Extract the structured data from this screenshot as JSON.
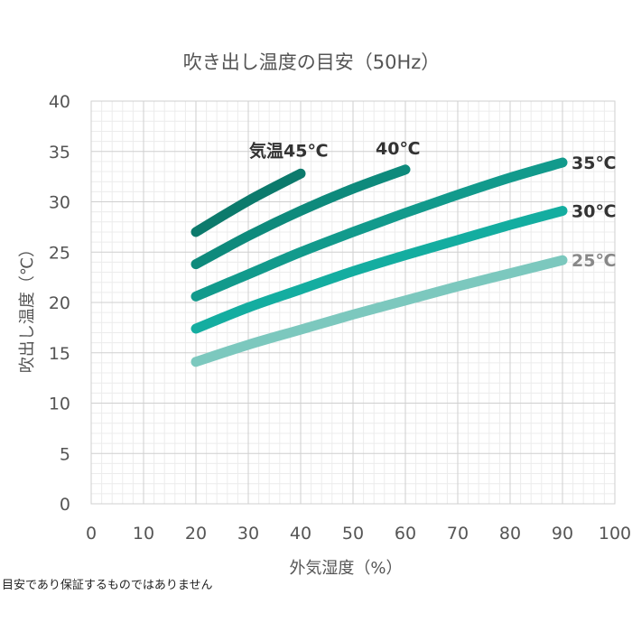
{
  "chart_data": {
    "type": "line",
    "title": "吹き出し温度の目安（50Hz）",
    "xlabel": "外気湿度（%）",
    "ylabel": "吹出し温度（℃）",
    "xlim": [
      0,
      100
    ],
    "ylim": [
      0,
      40
    ],
    "x_ticks": [
      "0",
      "10",
      "20",
      "30",
      "40",
      "50",
      "60",
      "70",
      "80",
      "90",
      "100"
    ],
    "y_ticks": [
      "0",
      "5",
      "10",
      "15",
      "20",
      "25",
      "30",
      "35",
      "40"
    ],
    "grid": true,
    "series": [
      {
        "name": "気温45℃",
        "color": "#0c7a6c",
        "x": [
          20,
          30,
          40
        ],
        "y": [
          27,
          30.1,
          32.8
        ]
      },
      {
        "name": "40℃",
        "color": "#0e8a7c",
        "x": [
          20,
          30,
          40,
          50,
          60
        ],
        "y": [
          23.8,
          26.6,
          29.1,
          31.3,
          33.2
        ]
      },
      {
        "name": "35℃",
        "color": "#129a8c",
        "x": [
          20,
          30,
          40,
          50,
          60,
          70,
          80,
          90
        ],
        "y": [
          20.6,
          22.8,
          25,
          27,
          28.9,
          30.7,
          32.4,
          33.9
        ]
      },
      {
        "name": "30℃",
        "color": "#14ada0",
        "x": [
          20,
          30,
          40,
          50,
          60,
          70,
          80,
          90
        ],
        "y": [
          17.4,
          19.5,
          21.3,
          23.1,
          24.7,
          26.2,
          27.7,
          29.1
        ]
      },
      {
        "name": "25℃",
        "color": "#7cc8be",
        "x": [
          20,
          30,
          40,
          50,
          60,
          70,
          80,
          90
        ],
        "y": [
          14.1,
          15.8,
          17.3,
          18.8,
          20.2,
          21.6,
          22.9,
          24.2
        ]
      }
    ],
    "series_label_colors": [
      "#333333",
      "#333333",
      "#333333",
      "#333333",
      "#888888"
    ]
  },
  "note": "目安であり保証するものではありません"
}
